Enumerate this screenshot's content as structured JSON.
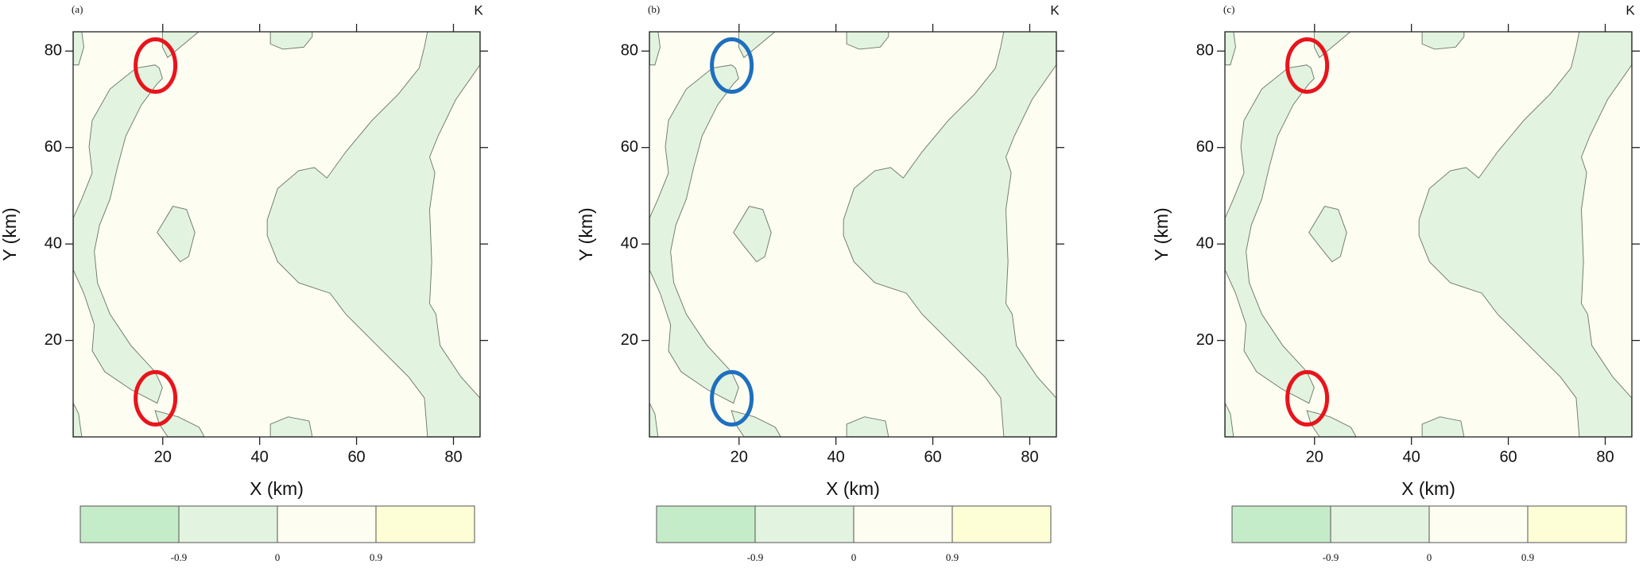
{
  "chart_data": [
    {
      "type": "contour",
      "panel_label": "(a)",
      "unit_label": "K",
      "x_label": "X (km)",
      "y_label": "Y (km)",
      "xlim": [
        1.5,
        85.5
      ],
      "ylim": [
        0,
        84
      ],
      "xticks": [
        20,
        40,
        60,
        80
      ],
      "yticks": [
        20,
        40,
        60,
        80
      ],
      "fill_color": "#e2f3df",
      "background_color": "#fdfdf2",
      "markers": {
        "color": "#e8141c",
        "x": [
          18.5,
          18.5
        ],
        "y": [
          77,
          8
        ]
      },
      "colorbar": {
        "levels": [
          -0.9,
          0,
          0.9
        ],
        "colors": [
          "#c5ecc8",
          "#e2f3df",
          "#fdfdf2",
          "#fdfdd6"
        ]
      }
    },
    {
      "type": "contour",
      "panel_label": "(b)",
      "unit_label": "K",
      "x_label": "X (km)",
      "y_label": "Y (km)",
      "xlim": [
        1.5,
        85.5
      ],
      "ylim": [
        0,
        84
      ],
      "xticks": [
        20,
        40,
        60,
        80
      ],
      "yticks": [
        20,
        40,
        60,
        80
      ],
      "fill_color": "#e2f3df",
      "background_color": "#fdfdf2",
      "markers": {
        "color": "#1f6fbf",
        "x": [
          18.5,
          18.5
        ],
        "y": [
          77,
          8
        ]
      },
      "colorbar": {
        "levels": [
          -0.9,
          0,
          0.9
        ],
        "colors": [
          "#c5ecc8",
          "#e2f3df",
          "#fdfdf2",
          "#fdfdd6"
        ]
      }
    },
    {
      "type": "contour",
      "panel_label": "(c)",
      "unit_label": "K",
      "x_label": "X (km)",
      "y_label": "Y (km)",
      "xlim": [
        1.5,
        85.5
      ],
      "ylim": [
        0,
        84
      ],
      "xticks": [
        20,
        40,
        60,
        80
      ],
      "yticks": [
        20,
        40,
        60,
        80
      ],
      "fill_color": "#e2f3df",
      "background_color": "#fdfdf2",
      "markers": {
        "color": "#e8141c",
        "x": [
          18.5,
          18.5
        ],
        "y": [
          77,
          8
        ]
      },
      "colorbar": {
        "levels": [
          -0.9,
          0,
          0.9
        ],
        "colors": [
          "#c5ecc8",
          "#e2f3df",
          "#fdfdf2",
          "#fdfdd6"
        ]
      }
    }
  ]
}
